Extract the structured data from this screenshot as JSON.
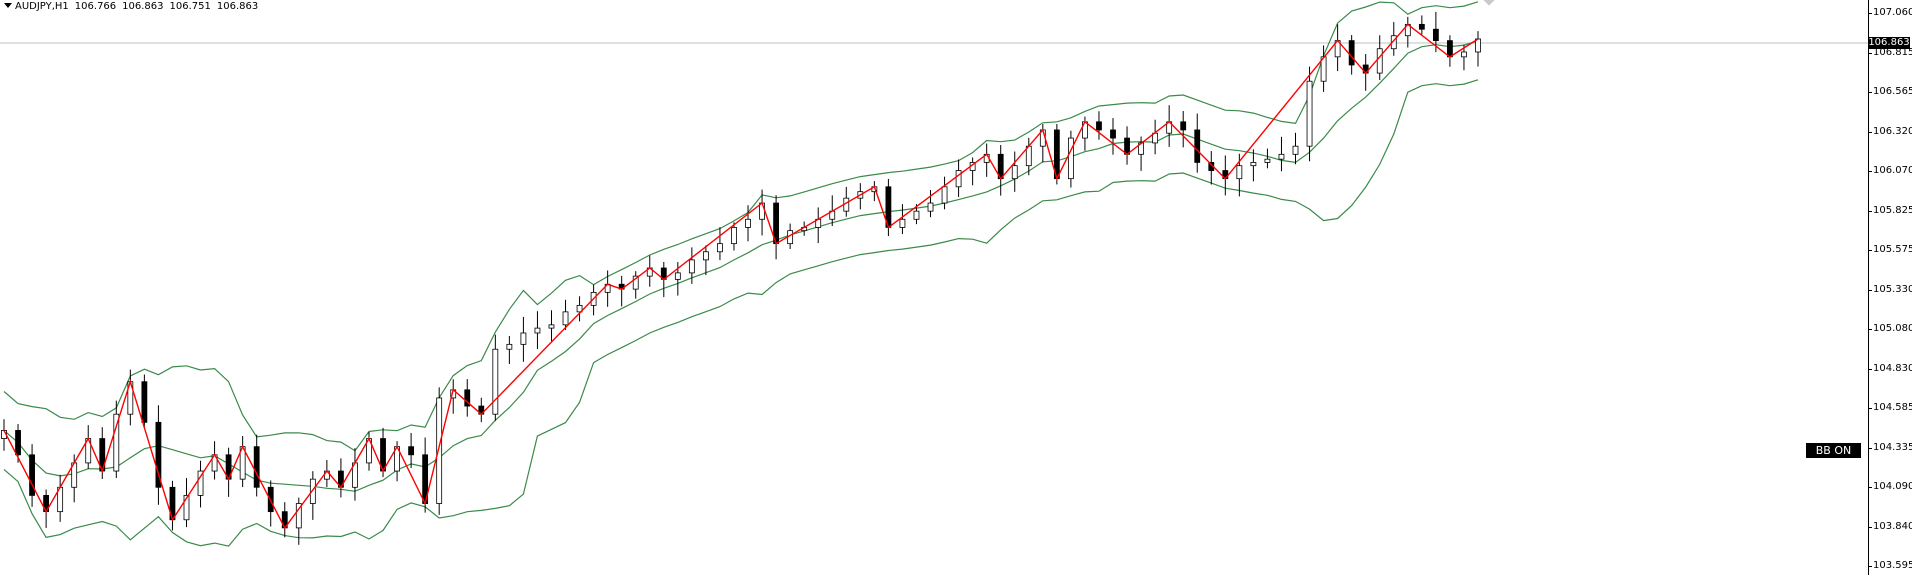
{
  "symbol_header": {
    "text": "AUDJPY,H1",
    "open": "106.766",
    "high": "106.863",
    "low": "106.751",
    "close": "106.863"
  },
  "current_price": "106.863",
  "indicator_label": "BB ON",
  "price_axis": {
    "ticks": [
      "107.060",
      "106.815",
      "106.565",
      "106.320",
      "106.070",
      "105.825",
      "105.575",
      "105.330",
      "105.080",
      "104.830",
      "104.585",
      "104.335",
      "104.090",
      "103.840",
      "103.595"
    ]
  },
  "colors": {
    "bands": "#3a8a4a",
    "zigzag": "#ff0000",
    "candle": "#000000",
    "background": "#ffffff"
  },
  "chart_data": {
    "type": "line",
    "symbol": "AUDJPY",
    "timeframe": "H1",
    "ylim": [
      103.56,
      107.1
    ],
    "current_price": 106.863,
    "series": [
      {
        "values": [
          104.45,
          104.3,
          104.05,
          103.95,
          104.1,
          104.25,
          104.4,
          104.2,
          104.55,
          104.75,
          104.5,
          104.1,
          103.9,
          104.05,
          104.2,
          104.3,
          104.15,
          104.35,
          104.1,
          103.95,
          103.85,
          104.0,
          104.15,
          104.2,
          104.1,
          104.25,
          104.4,
          104.2,
          104.35,
          104.3,
          104.0,
          104.65,
          104.7,
          104.6,
          104.55,
          104.95,
          104.98,
          105.05,
          105.08,
          105.1,
          105.18,
          105.22,
          105.3,
          105.35,
          105.32,
          105.4,
          105.45,
          105.38,
          105.42,
          105.5,
          105.55,
          105.6,
          105.7,
          105.75,
          105.85,
          105.6,
          105.68,
          105.7,
          105.75,
          105.8,
          105.88,
          105.92,
          105.95,
          105.7,
          105.75,
          105.8,
          105.85,
          105.95,
          106.05,
          106.1,
          106.15,
          106.0,
          106.08,
          106.2,
          106.3,
          106.0,
          106.25,
          106.35,
          106.3,
          106.25,
          106.15,
          106.22,
          106.28,
          106.35,
          106.3,
          106.1,
          106.05,
          106.0,
          106.08,
          106.1,
          106.12,
          106.15,
          106.2,
          106.6,
          106.75,
          106.85,
          106.7,
          106.65,
          106.8,
          106.88,
          106.95,
          106.92,
          106.85,
          106.75,
          106.78,
          106.86
        ],
        "style": "candlestick closes"
      }
    ]
  }
}
